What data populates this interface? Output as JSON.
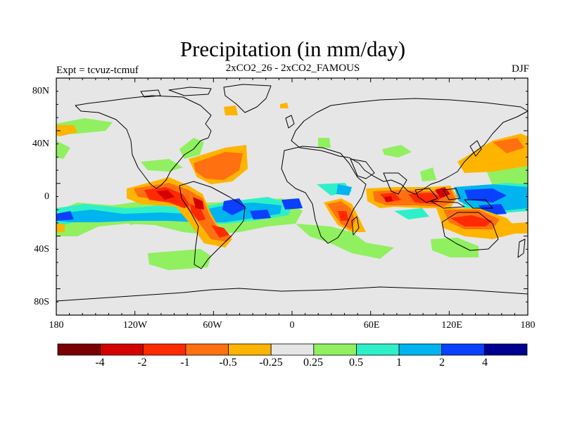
{
  "title": "Precipitation (in mm/day)",
  "subtitle_left": "Expt = tcvuz-tcmuf",
  "subtitle_center": "2xCO2_26 - 2xCO2_FAMOUS",
  "subtitle_right": "DJF",
  "lat_labels": [
    "80N",
    "40N",
    "0",
    "40S",
    "80S"
  ],
  "lon_labels": [
    "180",
    "120W",
    "60W",
    "0",
    "60E",
    "120E",
    "180"
  ],
  "colorbar": {
    "colors": [
      "#7a0000",
      "#d40000",
      "#ff2a00",
      "#ff7010",
      "#ffb400",
      "#e6e6e6",
      "#90f060",
      "#2ef0c8",
      "#00b4f0",
      "#0a40ff",
      "#000090"
    ],
    "labels": [
      "-4",
      "-2",
      "-1",
      "-0.5",
      "-0.25",
      "0.25",
      "0.5",
      "1",
      "2",
      "4"
    ]
  },
  "colors": {
    "background": "#e6e6e6",
    "coastline": "#000000"
  }
}
